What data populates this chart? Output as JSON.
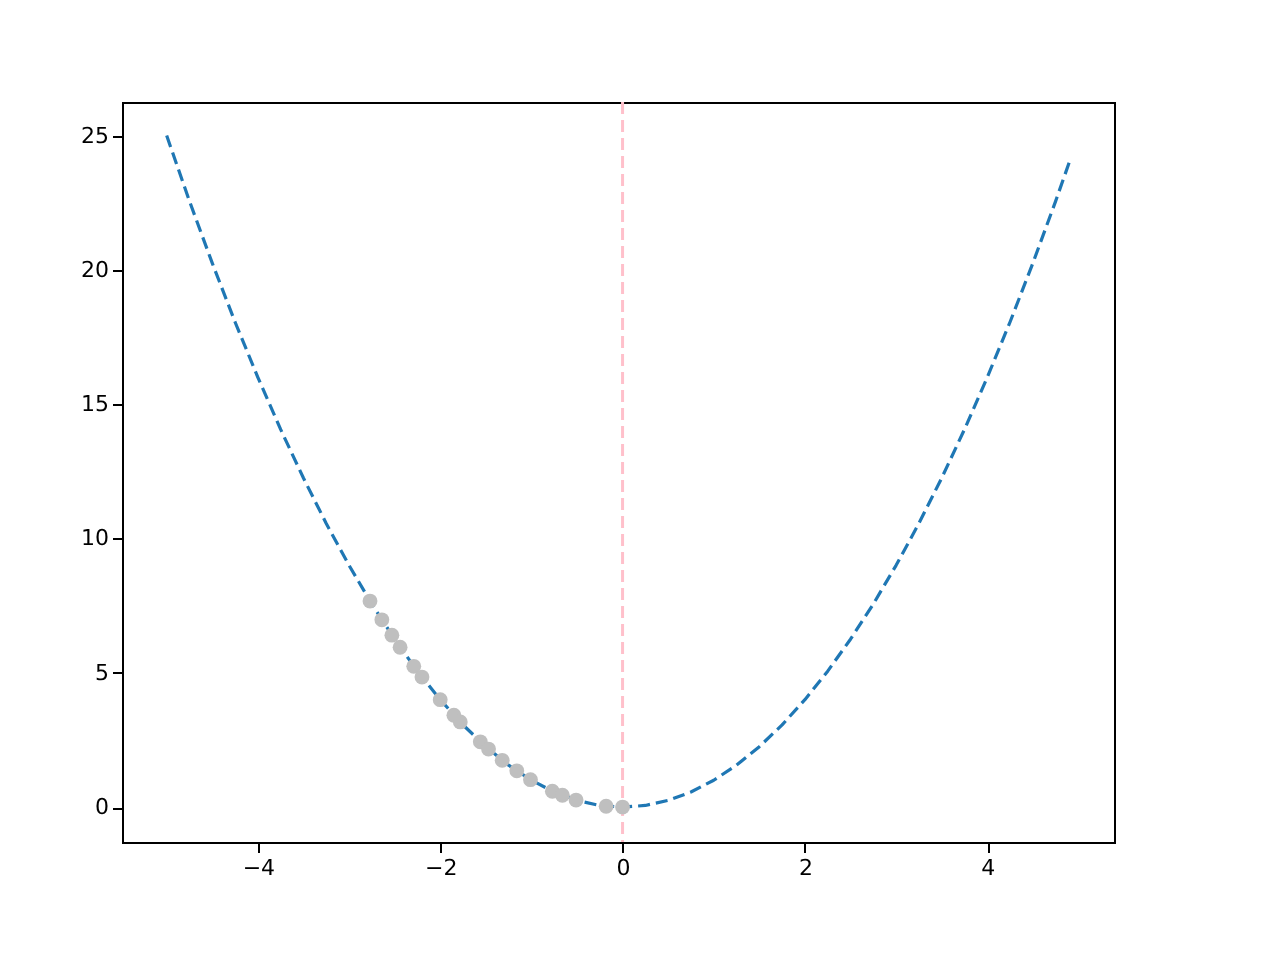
{
  "chart_data": {
    "type": "line",
    "xlim": [
      -5.49,
      5.39
    ],
    "ylim": [
      -1.3,
      26.25
    ],
    "xticks": [
      -4,
      -2,
      0,
      2,
      4
    ],
    "yticks": [
      0,
      5,
      10,
      15,
      20,
      25
    ],
    "grid": false,
    "series": [
      {
        "color": "#1f77b4",
        "line_style": "dashed",
        "marker": "none",
        "x": [
          -5,
          -4.75,
          -4.5,
          -4.25,
          -4,
          -3.75,
          -3.5,
          -3.25,
          -3,
          -2.75,
          -2.5,
          -2.25,
          -2,
          -1.75,
          -1.5,
          -1.25,
          -1,
          -0.75,
          -0.5,
          -0.25,
          0,
          0.25,
          0.5,
          0.75,
          1,
          1.25,
          1.5,
          1.75,
          2,
          2.25,
          2.5,
          2.75,
          3,
          3.25,
          3.5,
          3.75,
          4,
          4.25,
          4.5,
          4.75,
          4.9
        ],
        "values": [
          25,
          22.56,
          20.25,
          18.06,
          16,
          14.06,
          12.25,
          10.56,
          9,
          7.56,
          6.25,
          5.06,
          4,
          3.06,
          2.25,
          1.56,
          1,
          0.56,
          0.25,
          0.06,
          0,
          0.06,
          0.25,
          0.56,
          1,
          1.56,
          2.25,
          3.06,
          4,
          5.06,
          6.25,
          7.56,
          9,
          10.56,
          12.25,
          14.06,
          16,
          18.06,
          20.25,
          22.56,
          24.01
        ]
      },
      {
        "type": "scatter",
        "color": "#bfbfbf",
        "marker": "circle",
        "x": [
          -2.77,
          -2.64,
          -2.53,
          -2.44,
          -2.29,
          -2.2,
          -2.0,
          -1.85,
          -1.78,
          -1.56,
          -1.47,
          -1.32,
          -1.16,
          -1.01,
          -0.77,
          -0.66,
          -0.51,
          -0.18,
          0
        ],
        "values": [
          7.67,
          6.97,
          6.4,
          5.95,
          5.24,
          4.84,
          4.0,
          3.42,
          3.17,
          2.43,
          2.16,
          1.74,
          1.35,
          1.02,
          0.59,
          0.44,
          0.26,
          0.03,
          0
        ]
      }
    ],
    "ref_lines": [
      {
        "axis": "x",
        "value": 0,
        "color": "#ffc0cb",
        "line_style": "dashed"
      }
    ]
  }
}
